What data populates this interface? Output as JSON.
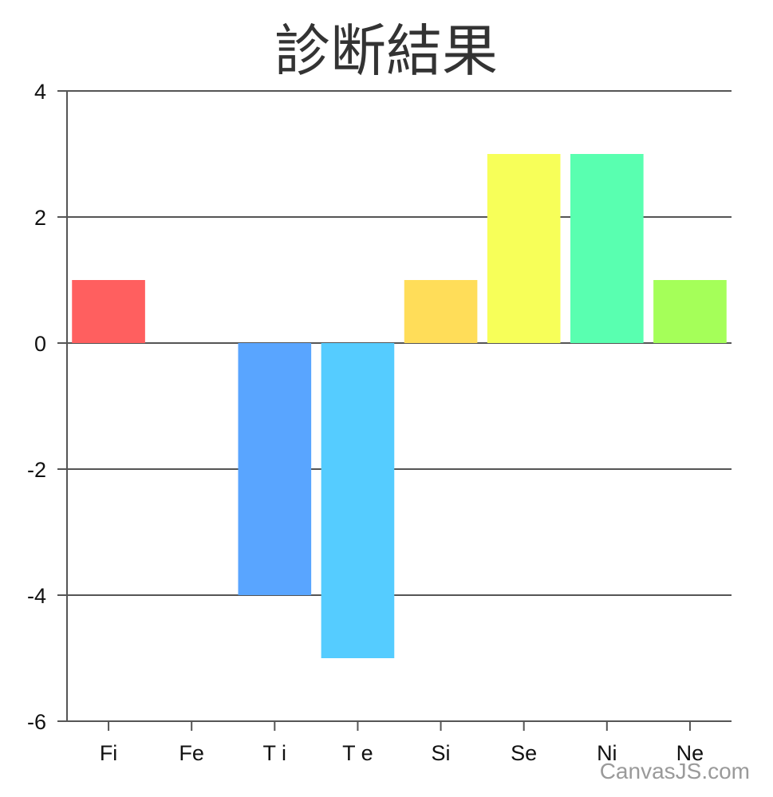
{
  "chart_data": {
    "type": "bar",
    "title": "診断結果",
    "categories": [
      "Fi",
      "Fe",
      "T i",
      "T e",
      "Si",
      "Se",
      "Ni",
      "Ne"
    ],
    "values": [
      1,
      0,
      -4,
      -5,
      1,
      3,
      3,
      1
    ],
    "bar_colors": [
      "#FF5F5F",
      "#BDBDBD",
      "#59A5FF",
      "#55CCFF",
      "#FFDD59",
      "#F7FF59",
      "#59FFB0",
      "#A5FF59"
    ],
    "ylim": [
      -6,
      4
    ],
    "yticks": [
      -6,
      -4,
      -2,
      0,
      2,
      4
    ],
    "grid": true,
    "xlabel": "",
    "ylabel": ""
  },
  "credit": "CanvasJS.com"
}
